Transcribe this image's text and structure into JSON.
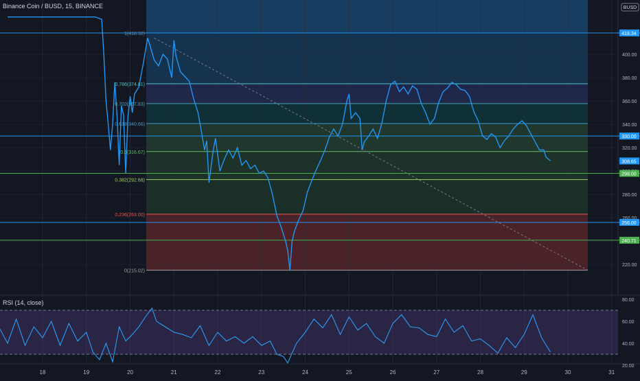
{
  "header": {
    "symbol_line": "Binance Coin / BUSD, 15, BINANCE"
  },
  "currency": "BUSD",
  "rsi": {
    "title": "RSI (14, close)",
    "overbought": 70,
    "oversold": 30,
    "ticks": [
      "80.00",
      "60.00",
      "40.00",
      "20.00"
    ]
  },
  "chart_data": [
    {
      "type": "line",
      "title": "Binance Coin / BUSD, 15, BINANCE",
      "x_ticks": [
        "18",
        "19",
        "20",
        "21",
        "22",
        "23",
        "24",
        "25",
        "26",
        "27",
        "28",
        "29",
        "30",
        "31"
      ],
      "y_ticks": [
        400,
        380,
        360,
        340,
        320,
        300,
        280,
        260,
        240,
        220
      ],
      "ylim": [
        208,
        436
      ],
      "fib_levels": [
        {
          "ratio": "1",
          "price": 418.32,
          "label": "1(418.32)",
          "color": "#5d8fb5"
        },
        {
          "ratio": "0.786",
          "price": 374.81,
          "label": "0.786(374.81)",
          "color": "#4fc3c9"
        },
        {
          "ratio": "0.702",
          "price": 357.83,
          "label": "0.702(357.83)",
          "color": "#4aa3c0"
        },
        {
          "ratio": "0.618",
          "price": 340.66,
          "label": "0.618(340.66)",
          "color": "#3c9cc8"
        },
        {
          "ratio": "0.5",
          "price": 316.67,
          "label": "0.5(316.67)",
          "color": "#66bb6a"
        },
        {
          "ratio": "0.382",
          "price": 292.68,
          "label": "0.382(292.68)",
          "color": "#9ccc65"
        },
        {
          "ratio": "0.236",
          "price": 263.0,
          "label": "0.236(263.00)",
          "color": "#ef5350"
        },
        {
          "ratio": "0",
          "price": 215.02,
          "label": "0(215.02)",
          "color": "#9e9e9e"
        }
      ],
      "horizontal_lines": [
        {
          "price": 418.34,
          "label": "418.34",
          "color": "#2196f3"
        },
        {
          "price": 330.0,
          "label": "330.00",
          "color": "#2196f3"
        },
        {
          "price": 298.0,
          "label": "298.00",
          "color": "#4caf50"
        },
        {
          "price": 256.0,
          "label": "256.00",
          "color": "#2196f3"
        },
        {
          "price": 240.71,
          "label": "240.71",
          "color": "#4caf50"
        }
      ],
      "last_price": {
        "price": 308.65,
        "label": "308.65",
        "color": "#2196f3"
      },
      "series": [
        {
          "x": [
            17.2,
            19.2,
            19.35,
            19.4,
            19.45,
            19.5,
            19.55,
            19.6,
            19.65,
            19.7,
            19.75,
            19.8,
            19.85,
            19.9,
            19.95,
            20.0,
            20.05,
            20.1,
            20.2,
            20.3,
            20.4,
            20.45,
            20.55,
            20.65,
            20.75,
            20.85,
            20.95,
            21.0,
            21.05,
            21.15,
            21.25,
            21.35,
            21.45,
            21.55,
            21.6,
            21.7,
            21.75,
            21.8,
            21.9,
            21.95,
            22.05,
            22.15,
            22.25,
            22.35,
            22.45,
            22.55,
            22.65,
            22.75,
            22.85,
            22.95,
            23.05,
            23.15,
            23.25,
            23.35,
            23.45,
            23.55,
            23.6,
            23.65,
            23.7,
            23.75,
            23.85,
            23.95,
            24.05,
            24.15,
            24.25,
            24.35,
            24.45,
            24.55,
            24.65,
            24.75,
            24.85,
            24.95,
            25.0,
            25.05,
            25.15,
            25.25,
            25.3,
            25.35,
            25.45,
            25.55,
            25.65,
            25.75,
            25.85,
            25.95,
            26.05,
            26.15,
            26.25,
            26.35,
            26.45,
            26.55,
            26.65,
            26.75,
            26.85,
            26.95,
            27.05,
            27.15,
            27.25,
            27.35,
            27.45,
            27.55,
            27.65,
            27.75,
            27.85,
            27.95,
            28.05,
            28.15,
            28.25,
            28.35,
            28.45,
            28.55,
            28.65,
            28.75,
            28.85,
            28.95,
            29.05,
            29.15,
            29.25,
            29.35,
            29.45,
            29.5,
            29.6
          ],
          "y": [
            432,
            432,
            430,
            400,
            360,
            340,
            318,
            340,
            376,
            348,
            305,
            356,
            348,
            298,
            346,
            364,
            350,
            366,
            372,
            392,
            414,
            408,
            395,
            390,
            400,
            396,
            380,
            412,
            398,
            385,
            381,
            377,
            362,
            350,
            340,
            318,
            326,
            290,
            318,
            328,
            300,
            310,
            318,
            311,
            320,
            305,
            309,
            302,
            305,
            298,
            300,
            294,
            280,
            262,
            252,
            240,
            232,
            215,
            240,
            248,
            258,
            266,
            282,
            292,
            301,
            309,
            318,
            329,
            336,
            330,
            340,
            360,
            366,
            345,
            350,
            345,
            318,
            325,
            330,
            336,
            328,
            341,
            360,
            374,
            377,
            368,
            372,
            366,
            373,
            370,
            358,
            350,
            340,
            345,
            359,
            368,
            371,
            376,
            374,
            370,
            369,
            364,
            351,
            343,
            330,
            327,
            332,
            329,
            320,
            326,
            330,
            336,
            340,
            343,
            339,
            332,
            325,
            318,
            318,
            312,
            308.65
          ]
        }
      ]
    },
    {
      "type": "line",
      "title": "RSI (14, close)",
      "ylim": [
        14,
        82
      ],
      "y_ticks": [
        80,
        60,
        40,
        20
      ],
      "series": [
        {
          "x": [
            17.0,
            17.2,
            17.4,
            17.6,
            17.8,
            18.0,
            18.2,
            18.4,
            18.6,
            18.8,
            19.0,
            19.15,
            19.3,
            19.45,
            19.6,
            19.75,
            19.9,
            20.05,
            20.2,
            20.35,
            20.5,
            20.6,
            20.8,
            21.0,
            21.2,
            21.4,
            21.6,
            21.8,
            22.0,
            22.2,
            22.4,
            22.6,
            22.8,
            23.0,
            23.2,
            23.35,
            23.5,
            23.6,
            23.8,
            24.0,
            24.2,
            24.4,
            24.6,
            24.8,
            25.0,
            25.2,
            25.4,
            25.6,
            25.8,
            26.0,
            26.2,
            26.4,
            26.6,
            26.8,
            27.0,
            27.2,
            27.4,
            27.6,
            27.8,
            28.0,
            28.2,
            28.4,
            28.6,
            28.8,
            29.0,
            29.2,
            29.4,
            29.6
          ],
          "y": [
            55,
            40,
            62,
            38,
            55,
            45,
            60,
            38,
            58,
            42,
            50,
            32,
            25,
            40,
            23,
            55,
            42,
            48,
            55,
            64,
            72,
            60,
            55,
            50,
            48,
            45,
            56,
            38,
            50,
            42,
            46,
            40,
            46,
            38,
            42,
            30,
            28,
            22,
            40,
            50,
            62,
            54,
            66,
            48,
            64,
            52,
            58,
            46,
            40,
            58,
            66,
            55,
            54,
            48,
            46,
            62,
            50,
            56,
            42,
            44,
            38,
            31,
            45,
            36,
            48,
            66,
            45,
            32
          ]
        }
      ]
    }
  ]
}
